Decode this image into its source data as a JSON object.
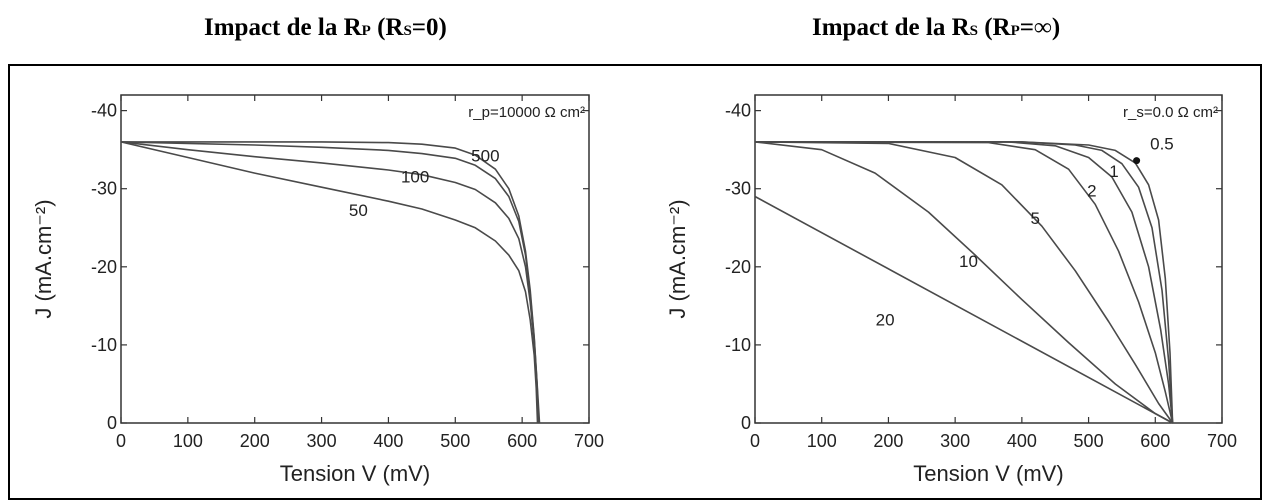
{
  "titles": {
    "left": {
      "prefix": "Impact de la R",
      "sub1": "P",
      "mid": " (R",
      "sub2": "S",
      "suffix": "=0)"
    },
    "right": {
      "prefix": "Impact de la R",
      "sub1": "S",
      "mid": " (R",
      "sub2": "P",
      "suffix": "=∞)"
    }
  },
  "chart_data": [
    {
      "type": "line",
      "xlabel": "Tension V (mV)",
      "ylabel": "J (mA.cm⁻²)",
      "xlim": [
        0,
        700
      ],
      "ylim": [
        0,
        -42
      ],
      "xticks": [
        0,
        100,
        200,
        300,
        400,
        500,
        600,
        700
      ],
      "yticks": [
        0,
        -10,
        -20,
        -30,
        -40
      ],
      "ytick_labels": [
        "0",
        "-10",
        "-20",
        "-30",
        "-40"
      ],
      "annotation": "r_p=10000 Ω cm²",
      "series": [
        {
          "name": "10000",
          "points": [
            [
              0,
              -36
            ],
            [
              100,
              -36
            ],
            [
              200,
              -36
            ],
            [
              300,
              -36
            ],
            [
              400,
              -35.9
            ],
            [
              450,
              -35.7
            ],
            [
              500,
              -35.2
            ],
            [
              530,
              -34.3
            ],
            [
              560,
              -32.5
            ],
            [
              580,
              -30
            ],
            [
              595,
              -26.5
            ],
            [
              605,
              -22
            ],
            [
              612,
              -17
            ],
            [
              618,
              -11
            ],
            [
              622,
              -5.5
            ],
            [
              626,
              0
            ]
          ]
        },
        {
          "name": "500",
          "label": "500",
          "label_at": [
            545,
            -33.5
          ],
          "points": [
            [
              0,
              -36
            ],
            [
              100,
              -35.8
            ],
            [
              200,
              -35.6
            ],
            [
              300,
              -35.3
            ],
            [
              400,
              -34.9
            ],
            [
              450,
              -34.5
            ],
            [
              500,
              -33.9
            ],
            [
              530,
              -33
            ],
            [
              560,
              -31.3
            ],
            [
              580,
              -29
            ],
            [
              595,
              -25.8
            ],
            [
              605,
              -21.5
            ],
            [
              612,
              -16.5
            ],
            [
              618,
              -10.8
            ],
            [
              622,
              -5.3
            ],
            [
              625,
              0
            ]
          ]
        },
        {
          "name": "100",
          "label": "100",
          "label_at": [
            440,
            -30.8
          ],
          "points": [
            [
              0,
              -36
            ],
            [
              100,
              -35
            ],
            [
              200,
              -34.1
            ],
            [
              300,
              -33.3
            ],
            [
              400,
              -32.4
            ],
            [
              450,
              -31.8
            ],
            [
              500,
              -30.8
            ],
            [
              530,
              -29.9
            ],
            [
              560,
              -28.2
            ],
            [
              580,
              -26.2
            ],
            [
              595,
              -23.6
            ],
            [
              605,
              -20
            ],
            [
              612,
              -15.5
            ],
            [
              618,
              -10.2
            ],
            [
              622,
              -5
            ],
            [
              624,
              0
            ]
          ]
        },
        {
          "name": "50",
          "label": "50",
          "label_at": [
            355,
            -26.5
          ],
          "points": [
            [
              0,
              -36
            ],
            [
              100,
              -34
            ],
            [
              200,
              -32
            ],
            [
              300,
              -30.2
            ],
            [
              400,
              -28.4
            ],
            [
              450,
              -27.4
            ],
            [
              500,
              -26
            ],
            [
              530,
              -25
            ],
            [
              560,
              -23.3
            ],
            [
              580,
              -21.5
            ],
            [
              595,
              -19.5
            ],
            [
              605,
              -16.8
            ],
            [
              612,
              -13.2
            ],
            [
              618,
              -8.7
            ],
            [
              621,
              -4.5
            ],
            [
              623,
              0
            ]
          ]
        }
      ]
    },
    {
      "type": "line",
      "xlabel": "Tension V (mV)",
      "ylabel": "J (mA.cm⁻²)",
      "xlim": [
        0,
        700
      ],
      "ylim": [
        0,
        -42
      ],
      "xticks": [
        0,
        100,
        200,
        300,
        400,
        500,
        600,
        700
      ],
      "yticks": [
        0,
        -10,
        -20,
        -30,
        -40
      ],
      "ytick_labels": [
        "0",
        "-10",
        "-20",
        "-30",
        "-40"
      ],
      "annotation": "r_s=0.0 Ω cm²",
      "series": [
        {
          "name": "0.0",
          "points": [
            [
              0,
              -36
            ],
            [
              400,
              -36
            ],
            [
              500,
              -35.6
            ],
            [
              540,
              -34.9
            ],
            [
              570,
              -33.3
            ],
            [
              590,
              -30.5
            ],
            [
              605,
              -26
            ],
            [
              615,
              -18.5
            ],
            [
              622,
              -9
            ],
            [
              626,
              0
            ]
          ]
        },
        {
          "name": "0.5",
          "label": "0.5",
          "label_at": [
            610,
            -35
          ],
          "points": [
            [
              0,
              -36
            ],
            [
              400,
              -36
            ],
            [
              480,
              -35.6
            ],
            [
              520,
              -34.9
            ],
            [
              550,
              -33.2
            ],
            [
              575,
              -30.2
            ],
            [
              595,
              -25
            ],
            [
              610,
              -17
            ],
            [
              620,
              -8
            ],
            [
              626,
              0
            ]
          ]
        },
        {
          "name": "1",
          "label": "1",
          "label_at": [
            538,
            -31.5
          ],
          "points": [
            [
              0,
              -36
            ],
            [
              380,
              -36
            ],
            [
              450,
              -35.5
            ],
            [
              500,
              -34
            ],
            [
              535,
              -31.5
            ],
            [
              565,
              -27
            ],
            [
              590,
              -20
            ],
            [
              608,
              -12
            ],
            [
              620,
              -5
            ],
            [
              626,
              0
            ]
          ]
        },
        {
          "name": "2",
          "label": "2",
          "label_at": [
            505,
            -29
          ],
          "points": [
            [
              0,
              -36
            ],
            [
              350,
              -35.9
            ],
            [
              420,
              -35
            ],
            [
              470,
              -32.5
            ],
            [
              510,
              -28
            ],
            [
              545,
              -22
            ],
            [
              575,
              -15.5
            ],
            [
              600,
              -9
            ],
            [
              615,
              -4
            ],
            [
              626,
              0
            ]
          ]
        },
        {
          "name": "5",
          "label": "5",
          "label_at": [
            420,
            -25.5
          ],
          "points": [
            [
              0,
              -36
            ],
            [
              200,
              -35.8
            ],
            [
              300,
              -34
            ],
            [
              370,
              -30.5
            ],
            [
              430,
              -25.2
            ],
            [
              480,
              -19.5
            ],
            [
              530,
              -13
            ],
            [
              570,
              -7.5
            ],
            [
              605,
              -2.5
            ],
            [
              626,
              0
            ]
          ]
        },
        {
          "name": "10",
          "label": "10",
          "label_at": [
            320,
            -20
          ],
          "points": [
            [
              0,
              -36
            ],
            [
              100,
              -35
            ],
            [
              180,
              -32
            ],
            [
              260,
              -27
            ],
            [
              330,
              -21.5
            ],
            [
              400,
              -15.8
            ],
            [
              470,
              -10.3
            ],
            [
              540,
              -5
            ],
            [
              600,
              -1.2
            ],
            [
              626,
              0
            ]
          ]
        },
        {
          "name": "20",
          "label": "20",
          "label_at": [
            195,
            -12.5
          ],
          "points": [
            [
              0,
              -29
            ],
            [
              626,
              0
            ]
          ]
        }
      ]
    }
  ]
}
